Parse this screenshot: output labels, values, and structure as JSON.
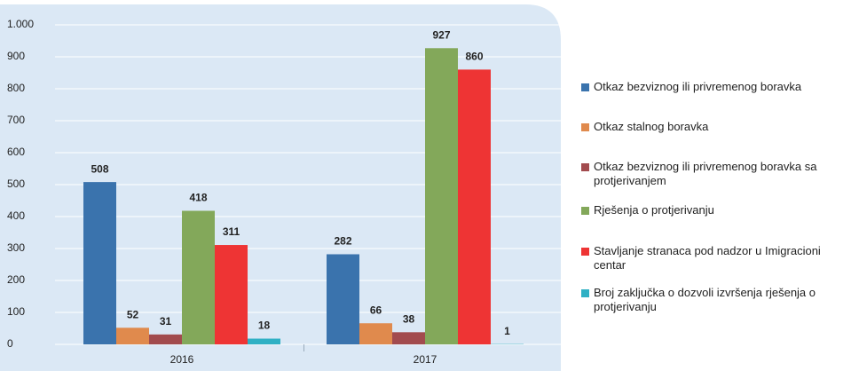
{
  "chart_data": {
    "type": "bar",
    "categories": [
      "2016",
      "2017"
    ],
    "series": [
      {
        "name": "Otkaz bezviznog ili privremenog boravka",
        "color": "#3a73ad",
        "values": [
          508,
          282
        ]
      },
      {
        "name": "Otkaz stalnog boravka",
        "color": "#e08a4d",
        "values": [
          52,
          66
        ]
      },
      {
        "name": "Otkaz bezviznog ili privremenog boravka sa protjerivanjem",
        "color": "#a24b4e",
        "values": [
          31,
          38
        ]
      },
      {
        "name": "Rješenja o protjerivanju",
        "color": "#83a85a",
        "values": [
          418,
          927
        ]
      },
      {
        "name": "Stavljanje stranaca pod nadzor u Imigracioni centar",
        "color": "#ee3434",
        "values": [
          311,
          860
        ]
      },
      {
        "name": "Broj zaključka o dozvoli izvršenja rješenja o protjerivanju",
        "color": "#2fb0c4",
        "values": [
          18,
          1
        ]
      }
    ],
    "ylim": [
      0,
      1000
    ],
    "yticks": [
      0,
      100,
      200,
      300,
      400,
      500,
      600,
      700,
      800,
      900,
      {
        "value": 1000,
        "label": "1.000"
      }
    ],
    "grid": true
  }
}
